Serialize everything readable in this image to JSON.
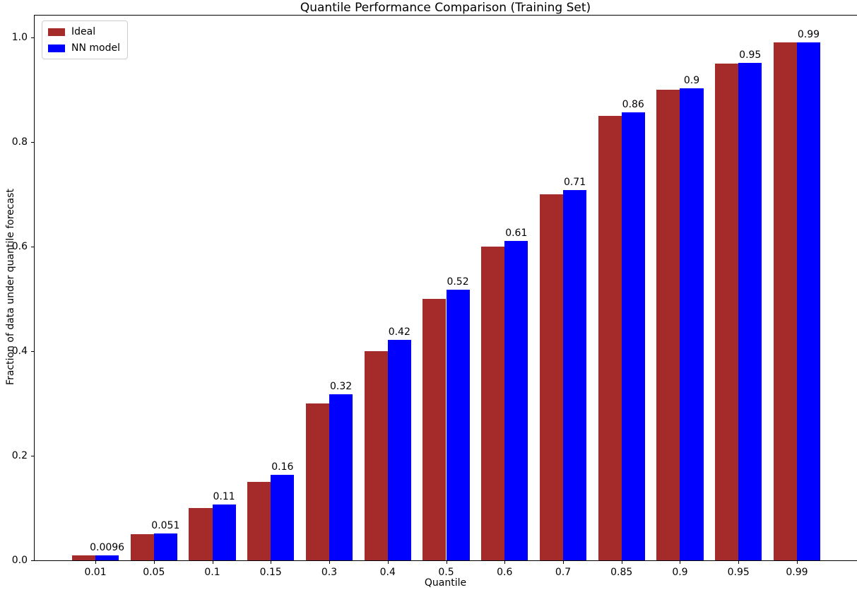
{
  "title": "Quantile Performance Comparison (Training Set)",
  "chart_data": {
    "type": "bar",
    "title": "Quantile Performance Comparison (Training Set)",
    "xlabel": "Quantile",
    "ylabel": "Fraction of data under quantile forecast",
    "categories": [
      "0.01",
      "0.05",
      "0.1",
      "0.15",
      "0.3",
      "0.4",
      "0.5",
      "0.6",
      "0.7",
      "0.85",
      "0.9",
      "0.95",
      "0.99"
    ],
    "series": [
      {
        "name": "Ideal",
        "color": "#A52A2A",
        "values": [
          0.01,
          0.05,
          0.1,
          0.15,
          0.3,
          0.4,
          0.5,
          0.6,
          0.7,
          0.85,
          0.9,
          0.95,
          0.99
        ]
      },
      {
        "name": "NN model",
        "color": "#0000FF",
        "values": [
          0.0096,
          0.051,
          0.107,
          0.163,
          0.318,
          0.422,
          0.517,
          0.611,
          0.708,
          0.857,
          0.903,
          0.951,
          0.99
        ],
        "labels": [
          "0.0096",
          "0.051",
          "0.11",
          "0.16",
          "0.32",
          "0.42",
          "0.52",
          "0.61",
          "0.71",
          "0.86",
          "0.9",
          "0.95",
          "0.99"
        ]
      }
    ],
    "yticks": [
      "0.0",
      "0.2",
      "0.4",
      "0.6",
      "0.8",
      "1.0"
    ],
    "ylim": [
      0,
      1.042
    ],
    "xlim_units": 14.08,
    "x_left_margin_units": 1.04,
    "bar_width_units": 0.4,
    "grid": false,
    "legend_position": "upper left",
    "background_color": "#ffffff",
    "spine_color": "#000000"
  }
}
